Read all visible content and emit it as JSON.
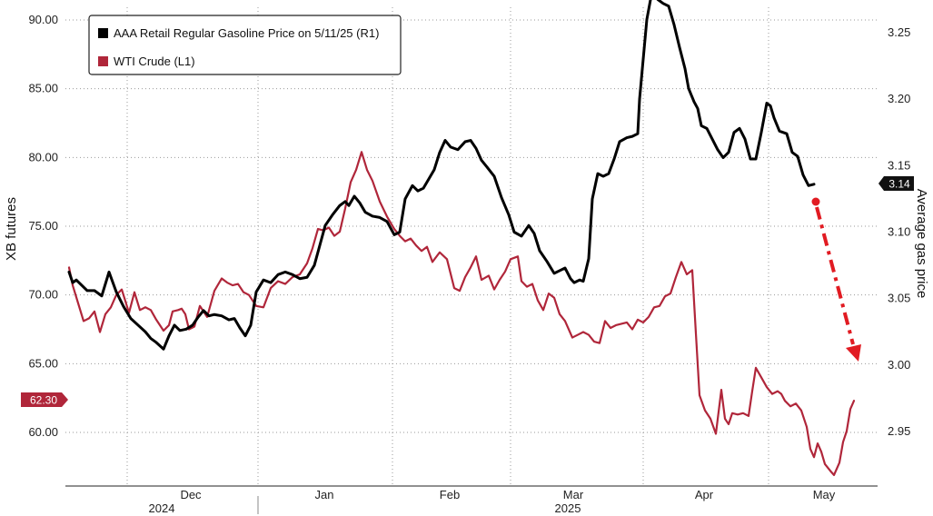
{
  "chart_data": {
    "type": "line",
    "y_left": {
      "label": "XB futures",
      "range": [
        55.5,
        91.5
      ],
      "ticks": [
        "60.00",
        "65.00",
        "70.00",
        "75.00",
        "80.00",
        "85.00",
        "90.00"
      ]
    },
    "y_right": {
      "label": "Average gas price",
      "range": [
        2.9,
        3.27
      ],
      "ticks": [
        "2.95",
        "3.00",
        "3.05",
        "3.10",
        "3.15",
        "3.20",
        "3.25"
      ]
    },
    "x_axis": {
      "months": [
        "Dec",
        "Jan",
        "Feb",
        "Mar",
        "Apr",
        "May"
      ],
      "years": [
        "2024",
        "2025"
      ]
    },
    "legend": {
      "placement": "top-left",
      "entries": [
        {
          "label": "AAA Retail Regular Gasoline Price on 5/11/25 (R1)",
          "color": "#000000"
        },
        {
          "label": "WTI Crude (L1)",
          "color": "#b0263a"
        }
      ]
    },
    "badges": {
      "left": "62.30",
      "right": "3.14"
    },
    "grid": true,
    "series": [
      {
        "name": "AAA Retail Regular Gasoline Price on 5/11/25 (R1)",
        "axis": "right",
        "color": "#000000",
        "points": [
          [
            76,
            3.07
          ],
          [
            80,
            3.062
          ],
          [
            84,
            3.064
          ],
          [
            90,
            3.06
          ],
          [
            96,
            3.056
          ],
          [
            104,
            3.056
          ],
          [
            112,
            3.052
          ],
          [
            120,
            3.07
          ],
          [
            128,
            3.055
          ],
          [
            136,
            3.044
          ],
          [
            144,
            3.035
          ],
          [
            152,
            3.03
          ],
          [
            160,
            3.025
          ],
          [
            166,
            3.02
          ],
          [
            172,
            3.017
          ],
          [
            180,
            3.012
          ],
          [
            186,
            3.022
          ],
          [
            192,
            3.03
          ],
          [
            198,
            3.026
          ],
          [
            205,
            3.027
          ],
          [
            212,
            3.03
          ],
          [
            218,
            3.036
          ],
          [
            224,
            3.041
          ],
          [
            230,
            3.037
          ],
          [
            236,
            3.038
          ],
          [
            244,
            3.037
          ],
          [
            252,
            3.034
          ],
          [
            258,
            3.035
          ],
          [
            264,
            3.028
          ],
          [
            270,
            3.022
          ],
          [
            276,
            3.03
          ],
          [
            282,
            3.055
          ],
          [
            290,
            3.064
          ],
          [
            298,
            3.062
          ],
          [
            306,
            3.068
          ],
          [
            314,
            3.07
          ],
          [
            322,
            3.068
          ],
          [
            330,
            3.065
          ],
          [
            338,
            3.066
          ],
          [
            346,
            3.075
          ],
          [
            352,
            3.09
          ],
          [
            358,
            3.105
          ],
          [
            366,
            3.113
          ],
          [
            374,
            3.12
          ],
          [
            380,
            3.123
          ],
          [
            384,
            3.12
          ],
          [
            390,
            3.127
          ],
          [
            396,
            3.122
          ],
          [
            402,
            3.115
          ],
          [
            410,
            3.112
          ],
          [
            418,
            3.111
          ],
          [
            426,
            3.108
          ],
          [
            434,
            3.098
          ],
          [
            440,
            3.1
          ],
          [
            446,
            3.125
          ],
          [
            454,
            3.135
          ],
          [
            460,
            3.131
          ],
          [
            466,
            3.133
          ],
          [
            472,
            3.14
          ],
          [
            478,
            3.147
          ],
          [
            484,
            3.16
          ],
          [
            490,
            3.169
          ],
          [
            496,
            3.164
          ],
          [
            504,
            3.162
          ],
          [
            512,
            3.168
          ],
          [
            518,
            3.169
          ],
          [
            524,
            3.163
          ],
          [
            530,
            3.154
          ],
          [
            536,
            3.149
          ],
          [
            544,
            3.142
          ],
          [
            552,
            3.126
          ],
          [
            560,
            3.113
          ],
          [
            566,
            3.1
          ],
          [
            574,
            3.097
          ],
          [
            582,
            3.105
          ],
          [
            588,
            3.099
          ],
          [
            594,
            3.086
          ],
          [
            602,
            3.078
          ],
          [
            610,
            3.069
          ],
          [
            616,
            3.071
          ],
          [
            622,
            3.073
          ],
          [
            628,
            3.065
          ],
          [
            632,
            3.062
          ],
          [
            638,
            3.064
          ],
          [
            642,
            3.063
          ],
          [
            648,
            3.08
          ],
          [
            652,
            3.125
          ],
          [
            658,
            3.144
          ],
          [
            664,
            3.142
          ],
          [
            670,
            3.144
          ],
          [
            676,
            3.155
          ],
          [
            682,
            3.168
          ],
          [
            690,
            3.171
          ],
          [
            696,
            3.172
          ],
          [
            702,
            3.174
          ],
          [
            704,
            3.2
          ],
          [
            708,
            3.23
          ],
          [
            712,
            3.26
          ],
          [
            718,
            3.282
          ],
          [
            724,
            3.275
          ],
          [
            730,
            3.272
          ],
          [
            736,
            3.27
          ],
          [
            742,
            3.256
          ],
          [
            748,
            3.239
          ],
          [
            754,
            3.223
          ],
          [
            758,
            3.208
          ],
          [
            764,
            3.198
          ],
          [
            768,
            3.193
          ],
          [
            772,
            3.18
          ],
          [
            778,
            3.178
          ],
          [
            784,
            3.17
          ],
          [
            790,
            3.162
          ],
          [
            796,
            3.156
          ],
          [
            802,
            3.16
          ],
          [
            808,
            3.175
          ],
          [
            814,
            3.178
          ],
          [
            820,
            3.17
          ],
          [
            826,
            3.155
          ],
          [
            832,
            3.155
          ],
          [
            838,
            3.175
          ],
          [
            844,
            3.197
          ],
          [
            848,
            3.195
          ],
          [
            852,
            3.186
          ],
          [
            858,
            3.176
          ],
          [
            866,
            3.174
          ],
          [
            872,
            3.16
          ],
          [
            878,
            3.157
          ],
          [
            884,
            3.143
          ],
          [
            890,
            3.135
          ],
          [
            896,
            3.136
          ]
        ]
      },
      {
        "name": "WTI Crude (L1)",
        "axis": "left",
        "color": "#b0263a",
        "points": [
          [
            76,
            72.0
          ],
          [
            80,
            70.7
          ],
          [
            86,
            69.4
          ],
          [
            92,
            68.1
          ],
          [
            98,
            68.3
          ],
          [
            104,
            68.8
          ],
          [
            110,
            67.3
          ],
          [
            116,
            68.6
          ],
          [
            122,
            69.1
          ],
          [
            128,
            70.0
          ],
          [
            134,
            70.4
          ],
          [
            142,
            68.7
          ],
          [
            148,
            70.2
          ],
          [
            154,
            68.9
          ],
          [
            160,
            69.1
          ],
          [
            166,
            68.9
          ],
          [
            172,
            68.2
          ],
          [
            180,
            67.4
          ],
          [
            186,
            67.8
          ],
          [
            190,
            68.8
          ],
          [
            196,
            68.9
          ],
          [
            200,
            69.0
          ],
          [
            204,
            68.6
          ],
          [
            208,
            67.5
          ],
          [
            214,
            67.7
          ],
          [
            220,
            69.2
          ],
          [
            228,
            68.4
          ],
          [
            236,
            70.3
          ],
          [
            244,
            71.2
          ],
          [
            250,
            70.9
          ],
          [
            256,
            70.7
          ],
          [
            262,
            70.8
          ],
          [
            268,
            70.2
          ],
          [
            274,
            70.0
          ],
          [
            282,
            69.2
          ],
          [
            290,
            69.1
          ],
          [
            298,
            70.5
          ],
          [
            306,
            71.0
          ],
          [
            314,
            70.8
          ],
          [
            322,
            71.3
          ],
          [
            330,
            71.5
          ],
          [
            338,
            72.3
          ],
          [
            344,
            73.4
          ],
          [
            350,
            74.8
          ],
          [
            356,
            74.7
          ],
          [
            362,
            74.9
          ],
          [
            368,
            74.3
          ],
          [
            374,
            74.6
          ],
          [
            380,
            76.3
          ],
          [
            386,
            78.2
          ],
          [
            392,
            79.1
          ],
          [
            398,
            80.4
          ],
          [
            404,
            79.1
          ],
          [
            410,
            78.3
          ],
          [
            418,
            76.8
          ],
          [
            426,
            75.7
          ],
          [
            434,
            74.8
          ],
          [
            440,
            74.3
          ],
          [
            446,
            73.9
          ],
          [
            452,
            74.1
          ],
          [
            458,
            73.6
          ],
          [
            464,
            73.2
          ],
          [
            470,
            73.5
          ],
          [
            476,
            72.4
          ],
          [
            484,
            73.1
          ],
          [
            492,
            72.6
          ],
          [
            500,
            70.5
          ],
          [
            506,
            70.3
          ],
          [
            512,
            71.3
          ],
          [
            518,
            72.0
          ],
          [
            524,
            72.8
          ],
          [
            530,
            71.1
          ],
          [
            538,
            71.4
          ],
          [
            544,
            70.4
          ],
          [
            550,
            71.1
          ],
          [
            556,
            71.7
          ],
          [
            562,
            72.6
          ],
          [
            570,
            72.8
          ],
          [
            574,
            71.0
          ],
          [
            580,
            70.6
          ],
          [
            586,
            70.8
          ],
          [
            592,
            69.6
          ],
          [
            598,
            68.9
          ],
          [
            604,
            70.1
          ],
          [
            610,
            69.8
          ],
          [
            616,
            68.6
          ],
          [
            622,
            68.1
          ],
          [
            630,
            66.9
          ],
          [
            636,
            67.1
          ],
          [
            642,
            67.3
          ],
          [
            648,
            67.1
          ],
          [
            654,
            66.6
          ],
          [
            660,
            66.5
          ],
          [
            666,
            68.1
          ],
          [
            672,
            67.6
          ],
          [
            678,
            67.8
          ],
          [
            684,
            67.9
          ],
          [
            690,
            68.0
          ],
          [
            696,
            67.5
          ],
          [
            702,
            68.2
          ],
          [
            708,
            68.0
          ],
          [
            714,
            68.4
          ],
          [
            720,
            69.1
          ],
          [
            726,
            69.2
          ],
          [
            732,
            69.9
          ],
          [
            738,
            70.1
          ],
          [
            744,
            71.3
          ],
          [
            750,
            72.4
          ],
          [
            756,
            71.5
          ],
          [
            762,
            71.8
          ],
          [
            766,
            67.2
          ],
          [
            770,
            62.7
          ],
          [
            776,
            61.6
          ],
          [
            782,
            61.0
          ],
          [
            788,
            59.9
          ],
          [
            794,
            63.1
          ],
          [
            798,
            61.0
          ],
          [
            802,
            60.6
          ],
          [
            806,
            61.4
          ],
          [
            812,
            61.3
          ],
          [
            818,
            61.4
          ],
          [
            824,
            61.2
          ],
          [
            828,
            63.0
          ],
          [
            832,
            64.7
          ],
          [
            838,
            64.0
          ],
          [
            844,
            63.3
          ],
          [
            850,
            62.8
          ],
          [
            856,
            63.0
          ],
          [
            860,
            62.8
          ],
          [
            864,
            62.3
          ],
          [
            870,
            61.9
          ],
          [
            876,
            62.1
          ],
          [
            882,
            61.6
          ],
          [
            888,
            60.4
          ],
          [
            892,
            58.8
          ],
          [
            896,
            58.2
          ],
          [
            900,
            59.2
          ],
          [
            904,
            58.6
          ],
          [
            908,
            57.7
          ],
          [
            914,
            57.2
          ],
          [
            918,
            56.9
          ],
          [
            924,
            57.8
          ],
          [
            928,
            59.3
          ],
          [
            932,
            60.1
          ],
          [
            936,
            61.7
          ],
          [
            940,
            62.3
          ]
        ]
      }
    ]
  }
}
